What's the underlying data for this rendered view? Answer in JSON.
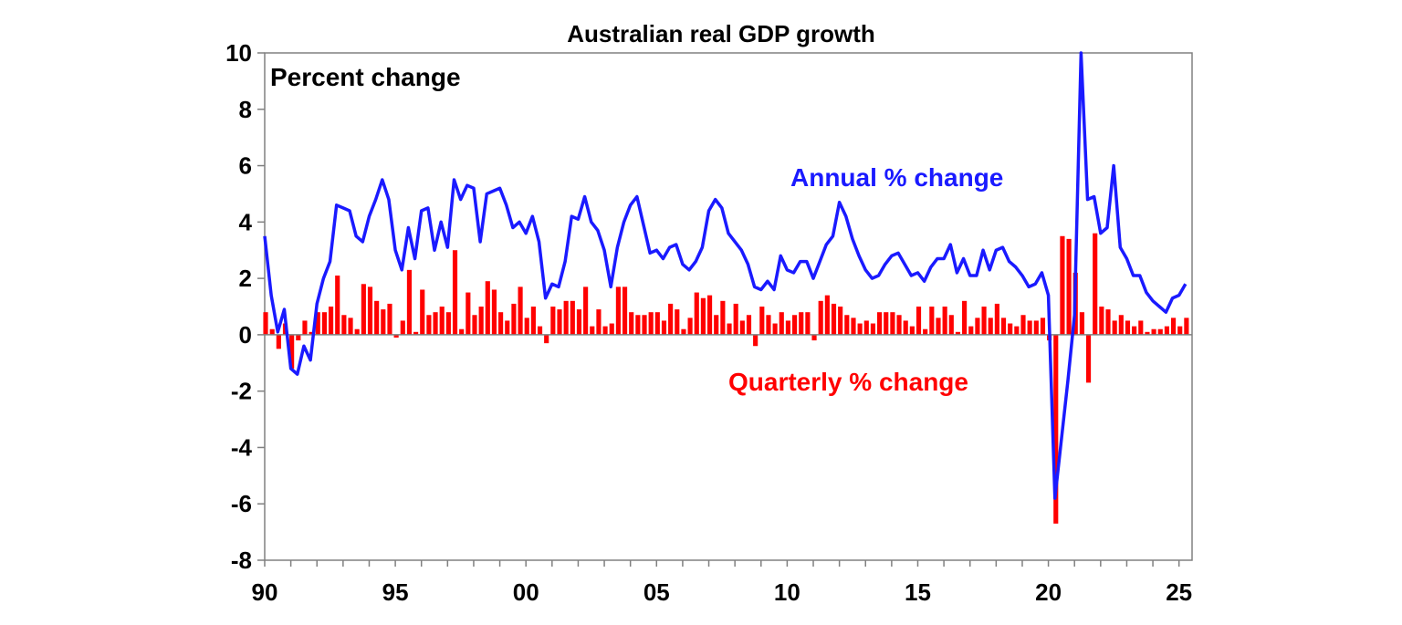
{
  "chart_data": {
    "type": "bar+line",
    "title": "Australian real GDP growth",
    "unit_label": "Percent change",
    "ylim": [
      -8,
      10
    ],
    "yticks": [
      "10",
      "8",
      "6",
      "4",
      "2",
      "0",
      "-2",
      "-4",
      "-6",
      "-8"
    ],
    "ytick_values": [
      10,
      8,
      6,
      4,
      2,
      0,
      -2,
      -4,
      -6,
      -8
    ],
    "xlim": [
      1990,
      2025.5
    ],
    "xticks": [
      "90",
      "95",
      "00",
      "05",
      "10",
      "15",
      "20",
      "25"
    ],
    "xtick_values": [
      1990,
      1995,
      2000,
      2005,
      2010,
      2015,
      2020,
      2025
    ],
    "grid": false,
    "legend": "inline annotations",
    "colors": {
      "annual": "#1a1aff",
      "quarterly": "#ff0000"
    },
    "series": [
      {
        "name": "Annual % change",
        "kind": "line",
        "start": 1990.0,
        "step": 0.25,
        "values": [
          3.5,
          1.4,
          0.1,
          0.9,
          -1.2,
          -1.4,
          -0.4,
          -0.9,
          1.1,
          2.0,
          2.6,
          4.6,
          4.5,
          4.4,
          3.5,
          3.3,
          4.2,
          4.8,
          5.5,
          4.8,
          3.0,
          2.3,
          3.8,
          2.7,
          4.4,
          4.5,
          3.0,
          4.0,
          3.1,
          5.5,
          4.8,
          5.3,
          5.2,
          3.3,
          5.0,
          5.1,
          5.2,
          4.6,
          3.8,
          4.0,
          3.6,
          4.2,
          3.3,
          1.3,
          1.8,
          1.7,
          2.6,
          4.2,
          4.1,
          4.9,
          4.0,
          3.7,
          3.0,
          1.7,
          3.1,
          4.0,
          4.6,
          4.9,
          3.9,
          2.9,
          3.0,
          2.7,
          3.1,
          3.2,
          2.5,
          2.3,
          2.6,
          3.1,
          4.4,
          4.8,
          4.5,
          3.6,
          3.3,
          3.0,
          2.5,
          1.7,
          1.6,
          1.9,
          1.6,
          2.8,
          2.3,
          2.2,
          2.6,
          2.6,
          2.0,
          2.6,
          3.2,
          3.5,
          4.7,
          4.2,
          3.4,
          2.8,
          2.3,
          2.0,
          2.1,
          2.5,
          2.8,
          2.9,
          2.5,
          2.1,
          2.2,
          1.9,
          2.4,
          2.7,
          2.7,
          3.2,
          2.2,
          2.7,
          2.1,
          2.1,
          3.0,
          2.3,
          3.0,
          3.1,
          2.6,
          2.4,
          2.1,
          1.7,
          1.8,
          2.2,
          1.4,
          -5.8,
          -3.7,
          -1.6,
          0.7,
          10.0,
          4.8,
          4.9,
          3.6,
          3.8,
          6.0,
          3.1,
          2.7,
          2.1,
          2.1,
          1.5,
          1.2,
          1.0,
          0.8,
          1.3,
          1.4,
          1.8
        ]
      },
      {
        "name": "Quarterly % change",
        "kind": "bar",
        "start": 1990.0,
        "step": 0.25,
        "values": [
          0.8,
          0.2,
          -0.5,
          0.4,
          -1.2,
          -0.2,
          0.5,
          0.1,
          0.8,
          0.8,
          1.0,
          2.1,
          0.7,
          0.6,
          0.2,
          1.8,
          1.7,
          1.2,
          0.9,
          1.1,
          -0.1,
          0.5,
          2.3,
          0.1,
          1.6,
          0.7,
          0.8,
          1.0,
          0.8,
          3.0,
          0.2,
          1.5,
          0.7,
          1.0,
          1.9,
          1.6,
          0.8,
          0.5,
          1.1,
          1.7,
          0.6,
          1.0,
          0.3,
          -0.3,
          1.0,
          0.9,
          1.2,
          1.2,
          0.9,
          1.7,
          0.3,
          0.9,
          0.3,
          0.4,
          1.7,
          1.7,
          0.8,
          0.7,
          0.7,
          0.8,
          0.8,
          0.5,
          1.1,
          0.9,
          0.2,
          0.6,
          1.5,
          1.3,
          1.4,
          0.7,
          1.2,
          0.4,
          1.1,
          0.5,
          0.7,
          -0.4,
          1.0,
          0.7,
          0.4,
          0.8,
          0.5,
          0.7,
          0.8,
          0.8,
          -0.2,
          1.2,
          1.4,
          1.1,
          1.0,
          0.7,
          0.6,
          0.4,
          0.5,
          0.4,
          0.8,
          0.8,
          0.8,
          0.7,
          0.5,
          0.3,
          1.0,
          0.2,
          1.0,
          0.6,
          1.0,
          0.7,
          0.1,
          1.2,
          0.3,
          0.6,
          1.0,
          0.6,
          1.1,
          0.6,
          0.4,
          0.3,
          0.7,
          0.5,
          0.5,
          0.6,
          -0.2,
          -6.7,
          3.5,
          3.4,
          2.2,
          0.8,
          -1.7,
          3.6,
          1.0,
          0.9,
          0.5,
          0.7,
          0.5,
          0.3,
          0.5,
          0.1,
          0.2,
          0.2,
          0.3,
          0.6,
          0.3,
          0.6
        ]
      }
    ],
    "annotations": [
      {
        "text": "Annual % change",
        "series": "Annual % change"
      },
      {
        "text": "Quarterly % change",
        "series": "Quarterly % change"
      }
    ]
  }
}
